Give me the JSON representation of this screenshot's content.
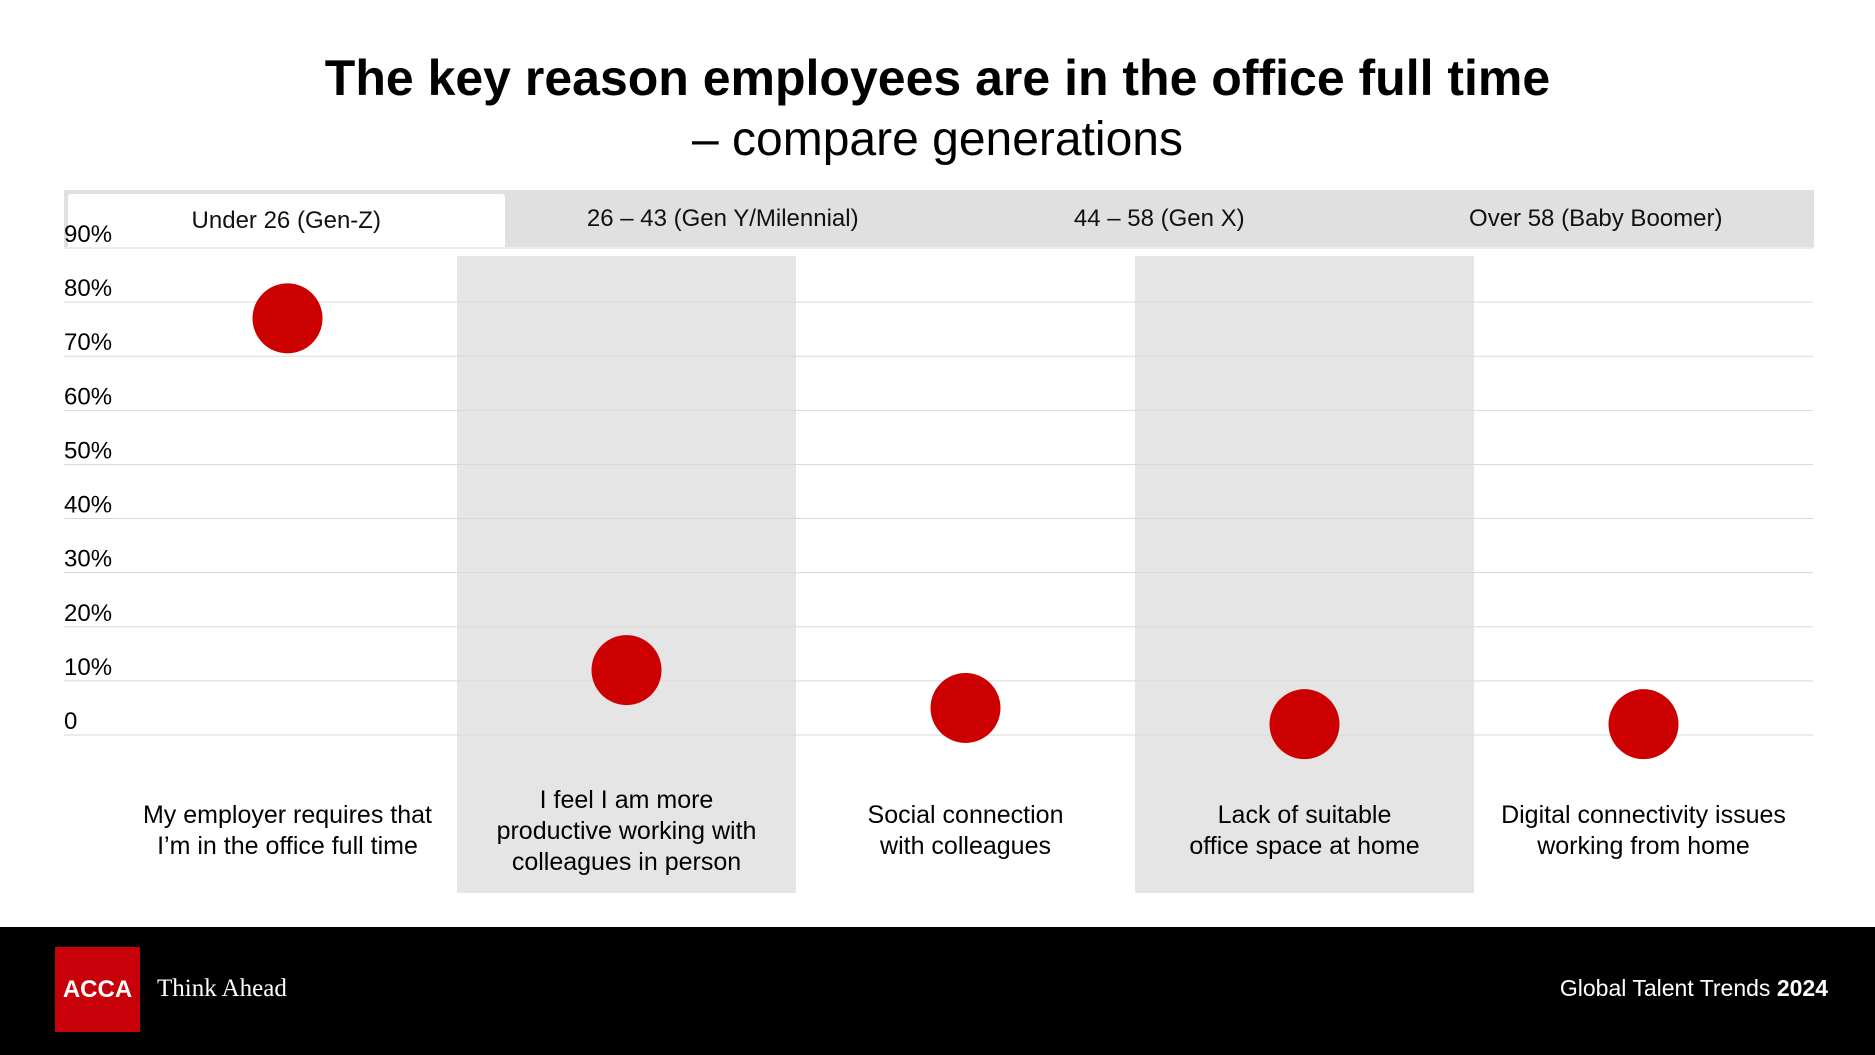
{
  "title": "The key reason employees are in the office full time",
  "subtitle": "– compare generations",
  "tabs": [
    {
      "label": "Under 26 (Gen-Z)",
      "active": true
    },
    {
      "label": "26 – 43 (Gen Y/Milennial)",
      "active": false
    },
    {
      "label": "44 – 58 (Gen X)",
      "active": false
    },
    {
      "label": "Over 58 (Baby Boomer)",
      "active": false
    }
  ],
  "chart_data": {
    "type": "scatter",
    "title": "The key reason employees are in the office full time",
    "subtitle": "– compare generations",
    "categories": [
      "My employer requires that I’m in the office full time",
      "I feel I am more productive working with colleagues in person",
      "Social connection with colleagues",
      "Lack of suitable office space at home",
      "Digital connectivity issues working from home"
    ],
    "category_lines": [
      [
        "My employer requires that",
        "I’m in the office full time"
      ],
      [
        "I feel I am more",
        "productive working with",
        "colleagues in person"
      ],
      [
        "Social connection",
        "with colleagues"
      ],
      [
        "Lack of suitable",
        "office space at home"
      ],
      [
        "Digital connectivity issues",
        "working from home"
      ]
    ],
    "values": [
      77,
      12,
      5,
      2,
      2
    ],
    "ylim": [
      0,
      90
    ],
    "y_ticks": [
      {
        "value": 90,
        "label": "90%"
      },
      {
        "value": 80,
        "label": "80%"
      },
      {
        "value": 70,
        "label": "70%"
      },
      {
        "value": 60,
        "label": "60%"
      },
      {
        "value": 50,
        "label": "50%"
      },
      {
        "value": 40,
        "label": "40%"
      },
      {
        "value": 30,
        "label": "30%"
      },
      {
        "value": 20,
        "label": "20%"
      },
      {
        "value": 10,
        "label": "10%"
      },
      {
        "value": 0,
        "label": "0"
      }
    ],
    "grid": true,
    "shaded_columns": [
      1,
      3
    ]
  },
  "colors": {
    "marker": "#cc0000",
    "shade": "#e5e5e5",
    "grid": "#d9d9d9",
    "brand": "#c8000a"
  },
  "footer": {
    "logo_text": "ACCA",
    "tagline": "Think Ahead",
    "report_name": "Global Talent Trends",
    "report_year": "2024"
  }
}
